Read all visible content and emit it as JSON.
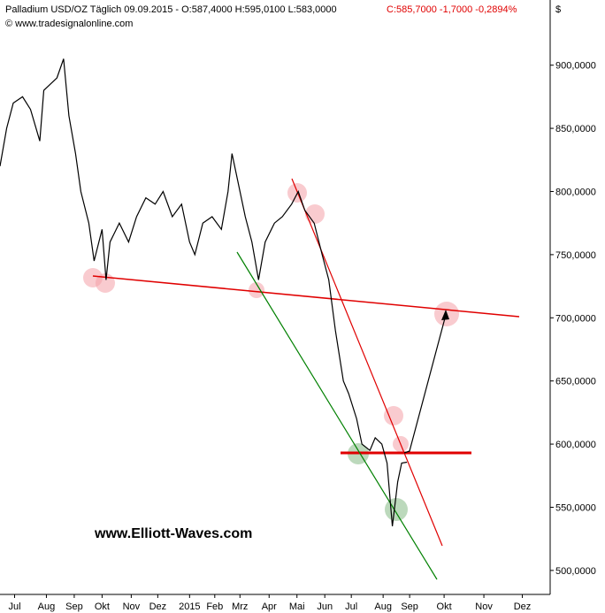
{
  "chart_data": {
    "type": "line",
    "title": "Palladium USD/OZ Täglich  09.09.2015 - O:587,4000 H:595,0100 L:583,0000",
    "subtitle": "C:585,7000 -1,7000 -0,2894%",
    "source": "© www.tradesignalonline.com",
    "y_unit": "$",
    "annotation": "www.Elliott-Waves.com",
    "series": [
      {
        "color": "#000000",
        "x": [
          0,
          5,
          10,
          17,
          23,
          30,
          33,
          38,
          43,
          48,
          52,
          57,
          61,
          67,
          71,
          77,
          80,
          83,
          90,
          97,
          103,
          110,
          117,
          123,
          130,
          137,
          143,
          147,
          153,
          160,
          167,
          172,
          175,
          180,
          185,
          190,
          195,
          200,
          207,
          213,
          220,
          225,
          230,
          237,
          243,
          248,
          253,
          259,
          263,
          269,
          273,
          279,
          283,
          288,
          292,
          296,
          300,
          303,
          307
        ],
        "values": [
          820,
          850,
          870,
          875,
          865,
          840,
          880,
          885,
          890,
          905,
          860,
          830,
          800,
          775,
          745,
          770,
          730,
          760,
          775,
          760,
          780,
          795,
          790,
          800,
          780,
          790,
          760,
          750,
          775,
          780,
          770,
          800,
          830,
          805,
          780,
          760,
          730,
          760,
          775,
          780,
          790,
          800,
          785,
          775,
          750,
          730,
          690,
          650,
          640,
          620,
          600,
          595,
          605,
          600,
          585,
          535,
          570,
          585,
          585.7
        ]
      }
    ],
    "xlim": [
      0,
      415
    ],
    "xticks": [
      {
        "value": 11,
        "label": "Jul"
      },
      {
        "value": 35,
        "label": "Aug"
      },
      {
        "value": 56,
        "label": "Sep"
      },
      {
        "value": 77,
        "label": "Okt"
      },
      {
        "value": 99,
        "label": "Nov"
      },
      {
        "value": 119,
        "label": "Dez"
      },
      {
        "value": 143,
        "label": "2015"
      },
      {
        "value": 162,
        "label": "Feb"
      },
      {
        "value": 181,
        "label": "Mrz"
      },
      {
        "value": 203,
        "label": "Apr"
      },
      {
        "value": 224,
        "label": "Mai"
      },
      {
        "value": 245,
        "label": "Jun"
      },
      {
        "value": 265,
        "label": "Jul"
      },
      {
        "value": 289,
        "label": "Aug"
      },
      {
        "value": 309,
        "label": "Sep"
      },
      {
        "value": 335,
        "label": "Okt"
      },
      {
        "value": 365,
        "label": "Nov"
      },
      {
        "value": 394,
        "label": "Dez"
      }
    ],
    "ylim": [
      481,
      946
    ],
    "yticks": [
      {
        "value": 500,
        "label": "500,0000"
      },
      {
        "value": 550,
        "label": "550,0000"
      },
      {
        "value": 600,
        "label": "600,0000"
      },
      {
        "value": 650,
        "label": "650,0000"
      },
      {
        "value": 700,
        "label": "700,0000"
      },
      {
        "value": 750,
        "label": "750,0000"
      },
      {
        "value": 800,
        "label": "800,0000"
      },
      {
        "value": 850,
        "label": "850,0000"
      },
      {
        "value": 900,
        "label": "900,0000"
      }
    ]
  }
}
